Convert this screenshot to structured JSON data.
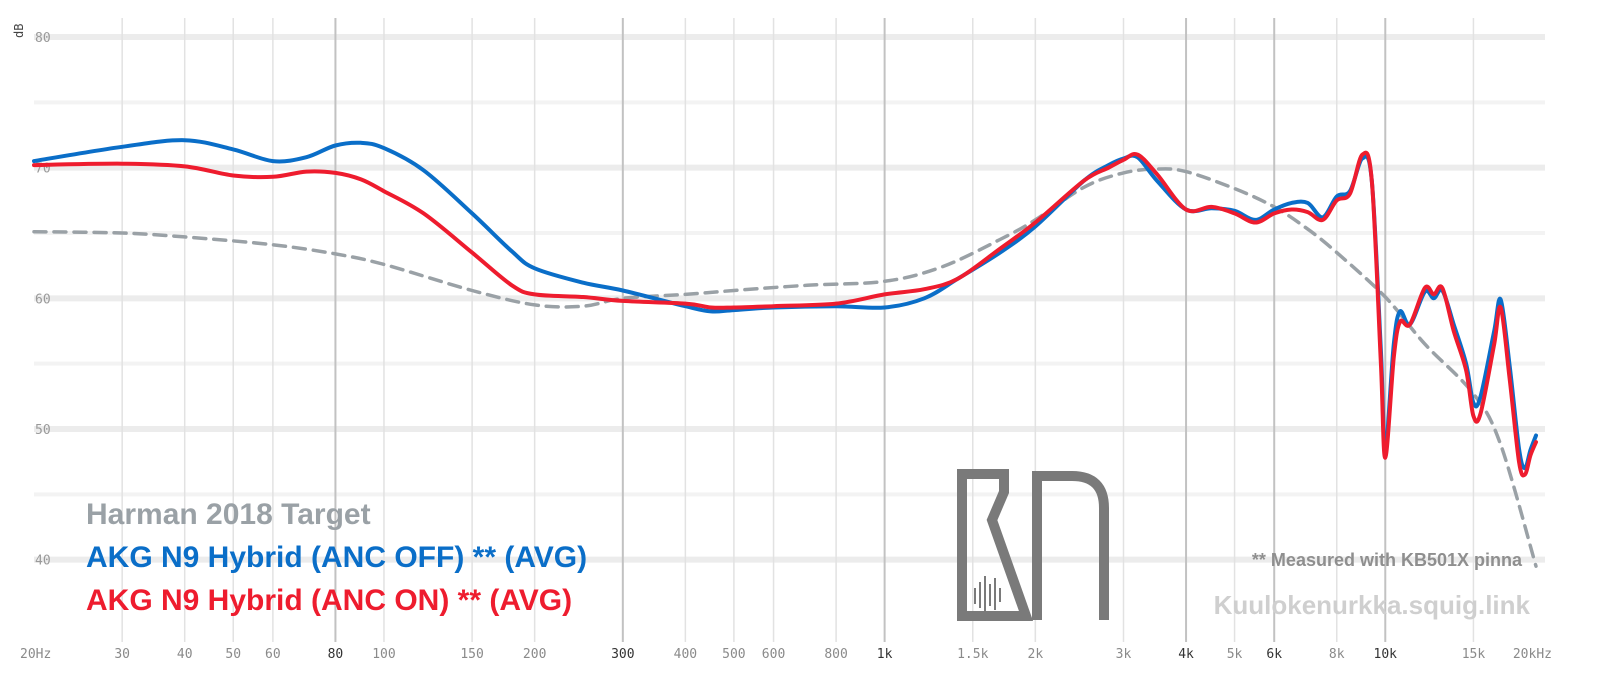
{
  "chart_data": {
    "type": "line",
    "ylabel": "dB",
    "xscale": "log",
    "xlim": [
      20,
      20000
    ],
    "ylim": [
      35,
      80
    ],
    "x_ticks": [
      {
        "v": 20,
        "label": "20Hz",
        "major": false
      },
      {
        "v": 30,
        "label": "30",
        "major": false
      },
      {
        "v": 40,
        "label": "40",
        "major": false
      },
      {
        "v": 50,
        "label": "50",
        "major": false
      },
      {
        "v": 60,
        "label": "60",
        "major": false
      },
      {
        "v": 80,
        "label": "80",
        "major": true
      },
      {
        "v": 100,
        "label": "100",
        "major": false
      },
      {
        "v": 150,
        "label": "150",
        "major": false
      },
      {
        "v": 200,
        "label": "200",
        "major": false
      },
      {
        "v": 300,
        "label": "300",
        "major": true
      },
      {
        "v": 400,
        "label": "400",
        "major": false
      },
      {
        "v": 500,
        "label": "500",
        "major": false
      },
      {
        "v": 600,
        "label": "600",
        "major": false
      },
      {
        "v": 800,
        "label": "800",
        "major": false
      },
      {
        "v": 1000,
        "label": "1k",
        "major": true
      },
      {
        "v": 1500,
        "label": "1.5k",
        "major": false
      },
      {
        "v": 2000,
        "label": "2k",
        "major": false
      },
      {
        "v": 3000,
        "label": "3k",
        "major": false
      },
      {
        "v": 4000,
        "label": "4k",
        "major": true
      },
      {
        "v": 5000,
        "label": "5k",
        "major": false
      },
      {
        "v": 6000,
        "label": "6k",
        "major": true
      },
      {
        "v": 8000,
        "label": "8k",
        "major": false
      },
      {
        "v": 10000,
        "label": "10k",
        "major": true
      },
      {
        "v": 15000,
        "label": "15k",
        "major": false
      },
      {
        "v": 20000,
        "label": "20kHz",
        "major": false
      }
    ],
    "y_ticks": [
      {
        "v": 80,
        "label": "80"
      },
      {
        "v": 70,
        "label": "70"
      },
      {
        "v": 60,
        "label": "60"
      },
      {
        "v": 50,
        "label": "50"
      },
      {
        "v": 40,
        "label": "40"
      }
    ],
    "grid": true,
    "legend_position": "bottom-left",
    "series": [
      {
        "name": "Harman 2018 Target",
        "color": "#9aa1a6",
        "dashed": true,
        "points": [
          [
            20,
            65.1
          ],
          [
            30,
            65.0
          ],
          [
            40,
            64.7
          ],
          [
            60,
            64.1
          ],
          [
            80,
            63.4
          ],
          [
            100,
            62.6
          ],
          [
            150,
            60.6
          ],
          [
            200,
            59.5
          ],
          [
            250,
            59.4
          ],
          [
            300,
            60.0
          ],
          [
            400,
            60.3
          ],
          [
            500,
            60.6
          ],
          [
            700,
            61.0
          ],
          [
            1000,
            61.3
          ],
          [
            1300,
            62.4
          ],
          [
            1700,
            64.5
          ],
          [
            2000,
            66.0
          ],
          [
            2500,
            68.5
          ],
          [
            3000,
            69.6
          ],
          [
            3500,
            69.9
          ],
          [
            4000,
            69.7
          ],
          [
            5000,
            68.4
          ],
          [
            6000,
            67.0
          ],
          [
            7000,
            65.3
          ],
          [
            8000,
            63.5
          ],
          [
            10000,
            60.1
          ],
          [
            12000,
            56.5
          ],
          [
            15000,
            52.7
          ],
          [
            17000,
            48.8
          ],
          [
            20000,
            39.5
          ]
        ]
      },
      {
        "name": "AKG N9 Hybrid (ANC OFF) ** (AVG)",
        "color": "#0a6ec8",
        "dashed": false,
        "points": [
          [
            20,
            70.5
          ],
          [
            30,
            71.6
          ],
          [
            40,
            72.1
          ],
          [
            50,
            71.4
          ],
          [
            60,
            70.5
          ],
          [
            70,
            70.8
          ],
          [
            80,
            71.7
          ],
          [
            90,
            71.9
          ],
          [
            100,
            71.5
          ],
          [
            120,
            69.8
          ],
          [
            150,
            66.5
          ],
          [
            180,
            63.6
          ],
          [
            200,
            62.3
          ],
          [
            250,
            61.2
          ],
          [
            300,
            60.6
          ],
          [
            400,
            59.4
          ],
          [
            450,
            59.0
          ],
          [
            500,
            59.1
          ],
          [
            600,
            59.3
          ],
          [
            800,
            59.4
          ],
          [
            1000,
            59.3
          ],
          [
            1200,
            60.0
          ],
          [
            1400,
            61.5
          ],
          [
            1700,
            63.5
          ],
          [
            2000,
            65.5
          ],
          [
            2500,
            69.0
          ],
          [
            2800,
            70.2
          ],
          [
            3000,
            70.7
          ],
          [
            3200,
            70.8
          ],
          [
            3500,
            69.0
          ],
          [
            4000,
            66.8
          ],
          [
            4500,
            66.9
          ],
          [
            5000,
            66.7
          ],
          [
            5500,
            66.0
          ],
          [
            6000,
            66.8
          ],
          [
            6500,
            67.3
          ],
          [
            7000,
            67.3
          ],
          [
            7500,
            66.2
          ],
          [
            8000,
            67.8
          ],
          [
            8500,
            68.2
          ],
          [
            9000,
            70.7
          ],
          [
            9400,
            69.0
          ],
          [
            9800,
            56.0
          ],
          [
            10000,
            48.5
          ],
          [
            10400,
            56.5
          ],
          [
            10700,
            59.0
          ],
          [
            11200,
            58.0
          ],
          [
            12000,
            60.5
          ],
          [
            12500,
            60.0
          ],
          [
            13000,
            60.6
          ],
          [
            13700,
            58.0
          ],
          [
            14500,
            55.0
          ],
          [
            15000,
            52.0
          ],
          [
            15500,
            52.5
          ],
          [
            16500,
            57.5
          ],
          [
            17000,
            59.9
          ],
          [
            17700,
            55.0
          ],
          [
            18500,
            48.5
          ],
          [
            19000,
            47.0
          ],
          [
            19500,
            48.4
          ],
          [
            20000,
            49.5
          ]
        ]
      },
      {
        "name": "AKG N9 Hybrid (ANC ON) ** (AVG)",
        "color": "#ee1c2e",
        "dashed": false,
        "points": [
          [
            20,
            70.2
          ],
          [
            30,
            70.3
          ],
          [
            40,
            70.1
          ],
          [
            50,
            69.4
          ],
          [
            60,
            69.3
          ],
          [
            70,
            69.7
          ],
          [
            80,
            69.6
          ],
          [
            90,
            69.1
          ],
          [
            100,
            68.2
          ],
          [
            120,
            66.5
          ],
          [
            150,
            63.5
          ],
          [
            180,
            61.0
          ],
          [
            200,
            60.3
          ],
          [
            250,
            60.1
          ],
          [
            300,
            59.8
          ],
          [
            400,
            59.6
          ],
          [
            450,
            59.3
          ],
          [
            500,
            59.3
          ],
          [
            600,
            59.4
          ],
          [
            800,
            59.6
          ],
          [
            1000,
            60.3
          ],
          [
            1200,
            60.7
          ],
          [
            1400,
            61.5
          ],
          [
            1700,
            63.8
          ],
          [
            2000,
            65.8
          ],
          [
            2500,
            69.0
          ],
          [
            2800,
            70.0
          ],
          [
            3000,
            70.6
          ],
          [
            3200,
            71.0
          ],
          [
            3500,
            69.5
          ],
          [
            4000,
            66.8
          ],
          [
            4500,
            67.0
          ],
          [
            5000,
            66.5
          ],
          [
            5500,
            65.8
          ],
          [
            6000,
            66.5
          ],
          [
            6500,
            66.8
          ],
          [
            7000,
            66.6
          ],
          [
            7500,
            66.0
          ],
          [
            8000,
            67.5
          ],
          [
            8500,
            68.0
          ],
          [
            9000,
            71.0
          ],
          [
            9400,
            69.0
          ],
          [
            9800,
            55.0
          ],
          [
            10000,
            47.8
          ],
          [
            10400,
            55.5
          ],
          [
            10700,
            58.2
          ],
          [
            11200,
            58.0
          ],
          [
            12000,
            60.8
          ],
          [
            12500,
            60.3
          ],
          [
            13000,
            60.8
          ],
          [
            13700,
            57.5
          ],
          [
            14500,
            54.5
          ],
          [
            15000,
            51.0
          ],
          [
            15500,
            51.2
          ],
          [
            16500,
            56.5
          ],
          [
            17000,
            59.3
          ],
          [
            17700,
            54.0
          ],
          [
            18500,
            47.5
          ],
          [
            19000,
            46.5
          ],
          [
            19500,
            48.0
          ],
          [
            20000,
            49.0
          ]
        ]
      }
    ]
  },
  "legend": {
    "harman": "Harman 2018 Target",
    "anc_off": "AKG N9 Hybrid (ANC OFF) ** (AVG)",
    "anc_on": "AKG N9 Hybrid (ANC ON) ** (AVG)"
  },
  "note": "** Measured with KB501X pinna",
  "site": "Kuulokenurkka.squig.link",
  "logo_icon": "kn-logo-icon"
}
